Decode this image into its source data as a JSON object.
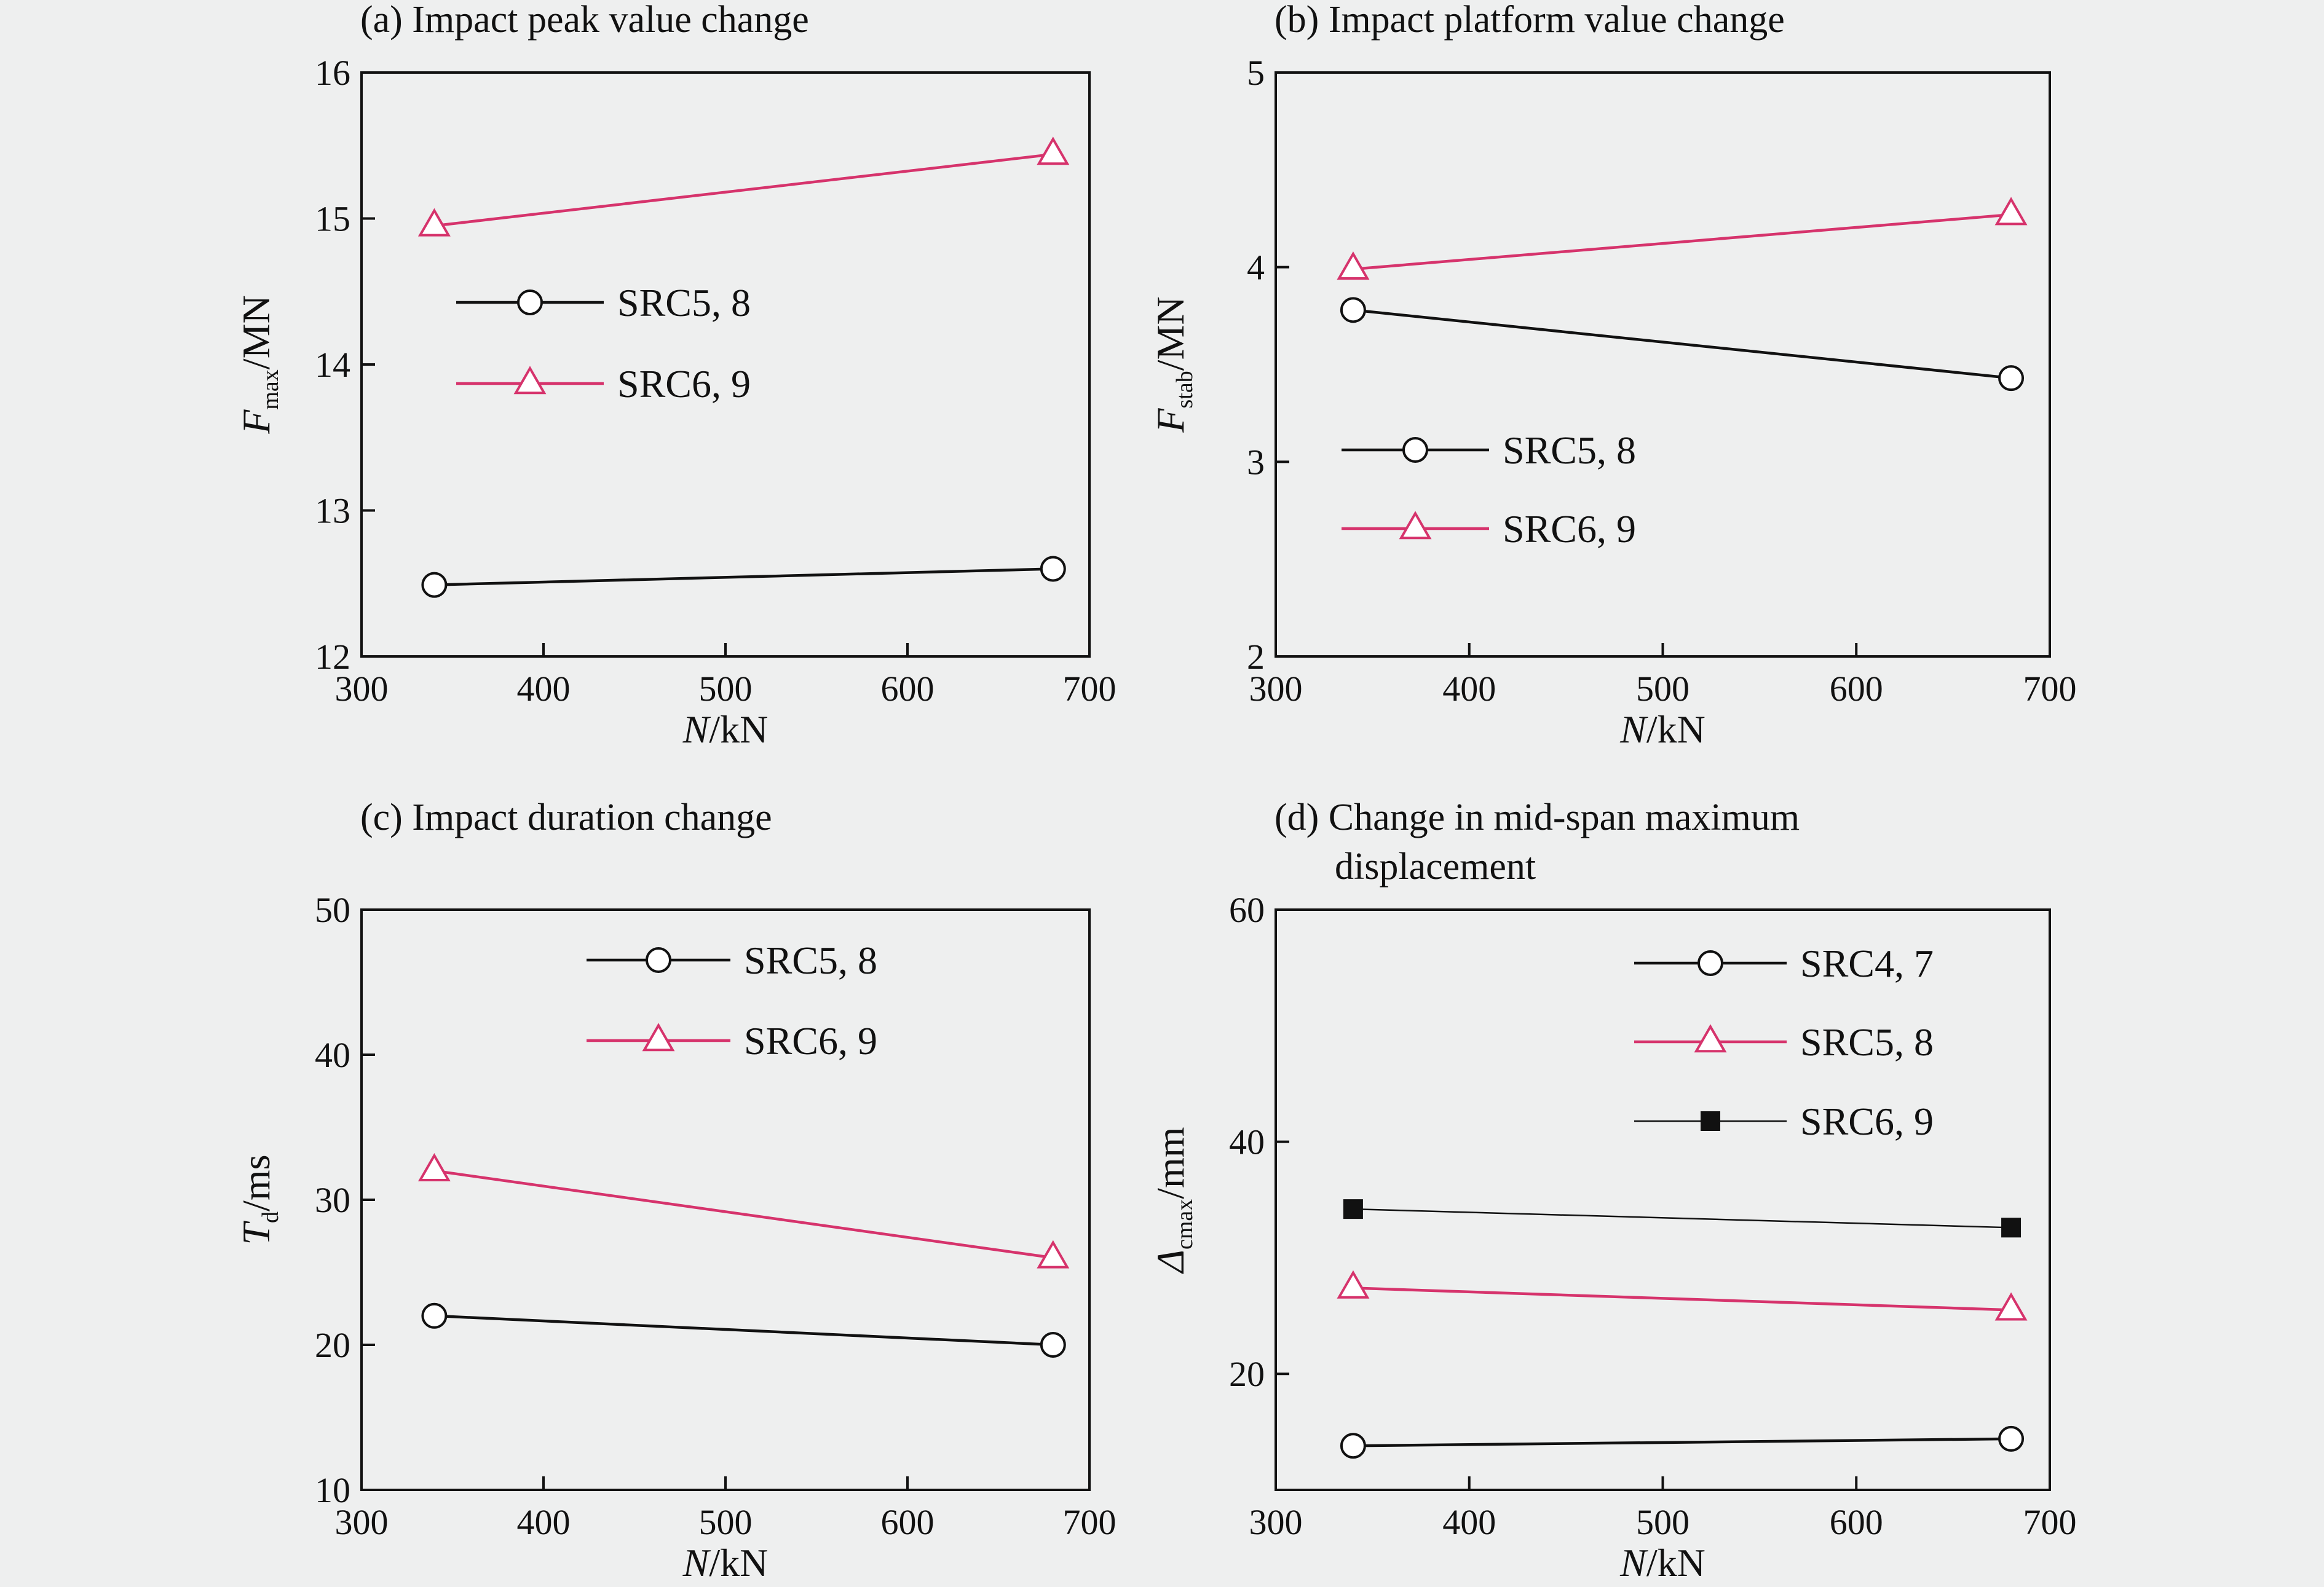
{
  "colors": {
    "black": "#111111",
    "pink": "#d6336c",
    "background": "#eeefef"
  },
  "charts": [
    {
      "title": "(a) Impact peak value change",
      "title_line2": "",
      "ylabel_main": "F",
      "ylabel_sub": "max",
      "ylabel_unit": "/MN",
      "ylabel_italic": true,
      "xlabel_main": "N",
      "xlabel_unit": "/kN",
      "legend_pos": "middle-left"
    },
    {
      "title": "(b) Impact platform value change",
      "title_line2": "",
      "ylabel_main": "F",
      "ylabel_sub": "stab",
      "ylabel_unit": "/MN",
      "ylabel_italic": true,
      "xlabel_main": "N",
      "xlabel_unit": "/kN",
      "legend_pos": "lower-left"
    },
    {
      "title": "(c) Impact duration change",
      "title_line2": "",
      "ylabel_main": "T",
      "ylabel_sub": "d",
      "ylabel_unit": "/ms",
      "ylabel_italic": true,
      "xlabel_main": "N",
      "xlabel_unit": "/kN",
      "legend_pos": "top-center"
    },
    {
      "title": "(d) Change in mid-span maximum",
      "title_line2": "displacement",
      "ylabel_main": "Δ",
      "ylabel_sub": "cmax",
      "ylabel_unit": "/mm",
      "ylabel_italic": true,
      "xlabel_main": "N",
      "xlabel_unit": "/kN",
      "legend_pos": "top-right"
    }
  ],
  "chart_data": [
    {
      "type": "line",
      "xlim": [
        300,
        700
      ],
      "xticks": [
        300,
        400,
        500,
        600,
        700
      ],
      "ylim": [
        12,
        16
      ],
      "yticks": [
        12,
        13,
        14,
        15,
        16
      ],
      "series": [
        {
          "name": "SRC5, 8",
          "marker": "circle",
          "color": "#111111",
          "x": [
            340,
            680
          ],
          "y": [
            12.49,
            12.6
          ]
        },
        {
          "name": "SRC6, 9",
          "marker": "triangle",
          "color": "#d6336c",
          "x": [
            340,
            680
          ],
          "y": [
            14.95,
            15.44
          ]
        }
      ]
    },
    {
      "type": "line",
      "xlim": [
        300,
        700
      ],
      "xticks": [
        300,
        400,
        500,
        600,
        700
      ],
      "ylim": [
        2,
        5
      ],
      "yticks": [
        2,
        3,
        4,
        5
      ],
      "series": [
        {
          "name": "SRC5, 8",
          "marker": "circle",
          "color": "#111111",
          "x": [
            340,
            680
          ],
          "y": [
            3.78,
            3.43
          ]
        },
        {
          "name": "SRC6, 9",
          "marker": "triangle",
          "color": "#d6336c",
          "x": [
            340,
            680
          ],
          "y": [
            3.99,
            4.27
          ]
        }
      ]
    },
    {
      "type": "line",
      "xlim": [
        300,
        700
      ],
      "xticks": [
        300,
        400,
        500,
        600,
        700
      ],
      "ylim": [
        10,
        50
      ],
      "yticks": [
        10,
        20,
        30,
        40,
        50
      ],
      "series": [
        {
          "name": "SRC5, 8",
          "marker": "circle",
          "color": "#111111",
          "x": [
            340,
            680
          ],
          "y": [
            22,
            20
          ]
        },
        {
          "name": "SRC6, 9",
          "marker": "triangle",
          "color": "#d6336c",
          "x": [
            340,
            680
          ],
          "y": [
            32,
            26
          ]
        }
      ]
    },
    {
      "type": "line",
      "xlim": [
        300,
        700
      ],
      "xticks": [
        300,
        400,
        500,
        600,
        700
      ],
      "ylim": [
        10,
        60
      ],
      "yticks": [
        20,
        40,
        60
      ],
      "series": [
        {
          "name": "SRC4, 7",
          "marker": "circle",
          "color": "#111111",
          "x": [
            340,
            680
          ],
          "y": [
            13.8,
            14.4
          ]
        },
        {
          "name": "SRC5, 8",
          "marker": "triangle",
          "color": "#d6336c",
          "x": [
            340,
            680
          ],
          "y": [
            27.4,
            25.5
          ]
        },
        {
          "name": "SRC6, 9",
          "marker": "square",
          "color": "#111111",
          "thin": true,
          "x": [
            340,
            680
          ],
          "y": [
            34.2,
            32.6
          ]
        }
      ]
    }
  ]
}
